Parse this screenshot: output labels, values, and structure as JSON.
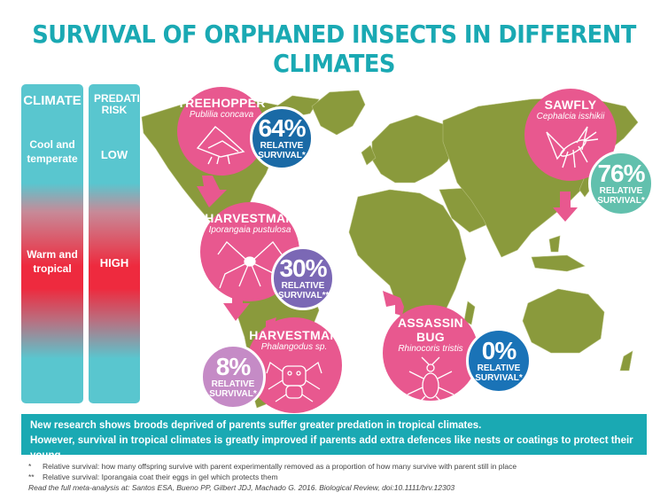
{
  "title": "SURVIVAL OF ORPHANED INSECTS IN DIFFERENT CLIMATES",
  "climate_bar": {
    "heading": "CLIMATE",
    "top_label": "Cool and temperate",
    "bottom_label": "Warm and tropical"
  },
  "predation_bar": {
    "heading": "PREDATION RISK",
    "top_label": "LOW",
    "bottom_label": "HIGH"
  },
  "species": [
    {
      "name": "TREEHOPPER",
      "latin": "Publilia concava",
      "percent": "64%",
      "label": "RELATIVE SURVIVAL*",
      "color": "#1a6aa6"
    },
    {
      "name": "SAWFLY",
      "latin": "Cephalcia isshikii",
      "percent": "76%",
      "label": "RELATIVE SURVIVAL*",
      "color": "#62c0ad"
    },
    {
      "name": "HARVESTMAN",
      "latin": "Iporangaia pustulosa",
      "percent": "30%",
      "label": "RELATIVE SURVIVAL**",
      "color": "#7b68b5"
    },
    {
      "name": "HARVESTMAN",
      "latin": "Phalangodus sp.",
      "percent": "8%",
      "label": "RELATIVE SURVIVAL*",
      "color": "#c58bc6"
    },
    {
      "name": "ASSASSIN BUG",
      "latin": "Rhinocoris tristis",
      "percent": "0%",
      "label": "RELATIVE SURVIVAL*",
      "color": "#1a73b7"
    }
  ],
  "banner": {
    "line1": "New research shows broods deprived of parents suffer greater predation in tropical climates.",
    "line2": "However, survival in tropical climates is greatly improved if parents add extra defences like nests or coatings to protect their young."
  },
  "footnotes": {
    "f1_mark": "*",
    "f1": "Relative survival: how many offspring survive with parent experimentally removed as a proportion of how many survive with parent still in place",
    "f2_mark": "**",
    "f2": "Relative survival: Iporangaia coat their eggs in gel which protects them",
    "citation": "Read the full meta-analysis at: Santos ESA, Bueno PP, Gilbert JDJ, Machado G. 2016. Biological Review, doi:10.1111/brv.12303"
  },
  "colors": {
    "teal": "#1aa9b3",
    "pink": "#e8588f",
    "map": "#8a9a3c",
    "red": "#ee2a3e"
  }
}
